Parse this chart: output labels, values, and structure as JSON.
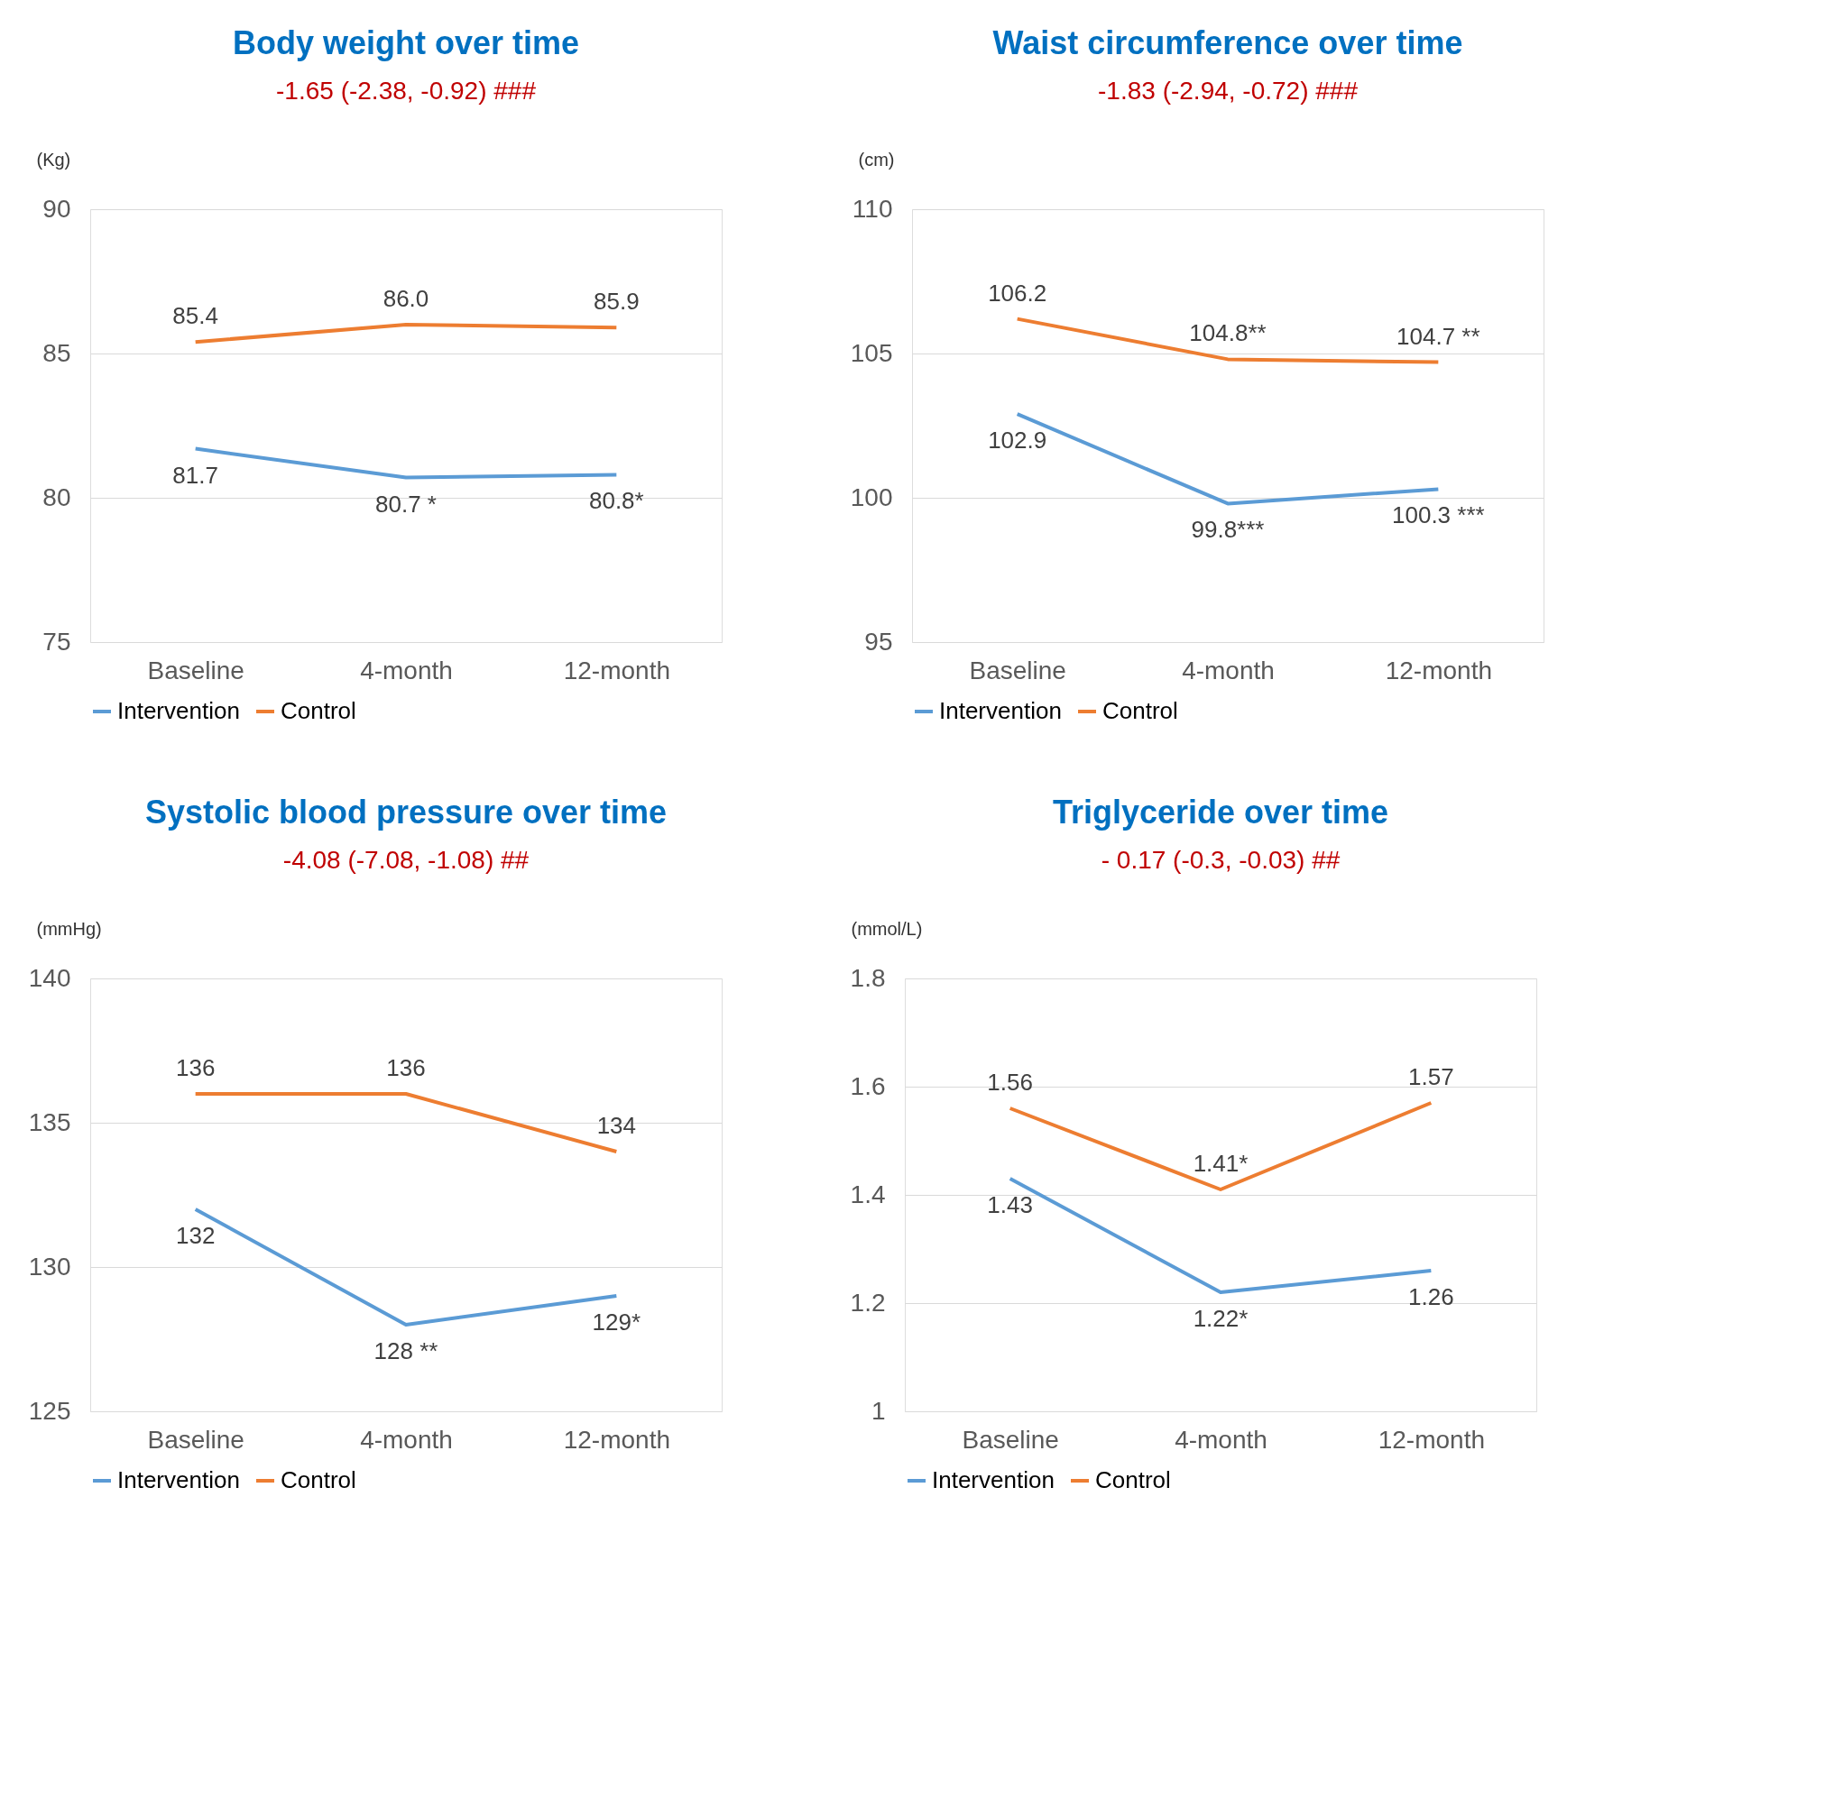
{
  "chart_data": [
    {
      "type": "line",
      "title": "Body weight over time",
      "subtitle": "-1.65 (-2.38, -0.92) ###",
      "ylabel": "(Kg)",
      "categories": [
        "Baseline",
        "4-month",
        "12-month"
      ],
      "ylim": [
        75,
        90
      ],
      "yticks": [
        75,
        80,
        85,
        90
      ],
      "grid": "y",
      "legend": "bottom",
      "series": [
        {
          "name": "Intervention",
          "color": "#5b9bd5",
          "values": [
            81.7,
            80.7,
            80.8
          ],
          "value_labels": [
            "81.7",
            "80.7 *",
            "80.8*"
          ]
        },
        {
          "name": "Control",
          "color": "#ed7d31",
          "values": [
            85.4,
            86.0,
            85.9
          ],
          "value_labels": [
            "85.4",
            "86.0",
            "85.9"
          ]
        }
      ]
    },
    {
      "type": "line",
      "title": "Waist circumference over time",
      "subtitle": "-1.83 (-2.94, -0.72) ###",
      "ylabel": "(cm)",
      "categories": [
        "Baseline",
        "4-month",
        "12-month"
      ],
      "ylim": [
        95,
        110
      ],
      "yticks": [
        95,
        100,
        105,
        110
      ],
      "grid": "y",
      "legend": "bottom",
      "series": [
        {
          "name": "Intervention",
          "color": "#5b9bd5",
          "values": [
            102.9,
            99.8,
            100.3
          ],
          "value_labels": [
            "102.9",
            "99.8***",
            "100.3 ***"
          ]
        },
        {
          "name": "Control",
          "color": "#ed7d31",
          "values": [
            106.2,
            104.8,
            104.7
          ],
          "value_labels": [
            "106.2",
            "104.8**",
            "104.7 **"
          ]
        }
      ]
    },
    {
      "type": "line",
      "title": "Systolic blood pressure over time",
      "subtitle": "-4.08 (-7.08, -1.08) ##",
      "ylabel": "(mmHg)",
      "categories": [
        "Baseline",
        "4-month",
        "12-month"
      ],
      "ylim": [
        125,
        140
      ],
      "yticks": [
        125,
        130,
        135,
        140
      ],
      "grid": "y",
      "legend": "bottom",
      "series": [
        {
          "name": "Intervention",
          "color": "#5b9bd5",
          "values": [
            132,
            128,
            129
          ],
          "value_labels": [
            "132",
            "128 **",
            "129*"
          ]
        },
        {
          "name": "Control",
          "color": "#ed7d31",
          "values": [
            136,
            136,
            134
          ],
          "value_labels": [
            "136",
            "136",
            "134"
          ]
        }
      ]
    },
    {
      "type": "line",
      "title": "Triglyceride over time",
      "subtitle": "- 0.17 (-0.3, -0.03) ##",
      "ylabel": "(mmol/L)",
      "categories": [
        "Baseline",
        "4-month",
        "12-month"
      ],
      "ylim": [
        1,
        1.8
      ],
      "yticks": [
        1,
        1.2,
        1.4,
        1.6,
        1.8
      ],
      "grid": "y",
      "legend": "bottom",
      "series": [
        {
          "name": "Intervention",
          "color": "#5b9bd5",
          "values": [
            1.43,
            1.22,
            1.26
          ],
          "value_labels": [
            "1.43",
            "1.22*",
            "1.26"
          ]
        },
        {
          "name": "Control",
          "color": "#ed7d31",
          "values": [
            1.56,
            1.41,
            1.57
          ],
          "value_labels": [
            "1.56",
            "1.41*",
            "1.57"
          ]
        }
      ]
    }
  ]
}
